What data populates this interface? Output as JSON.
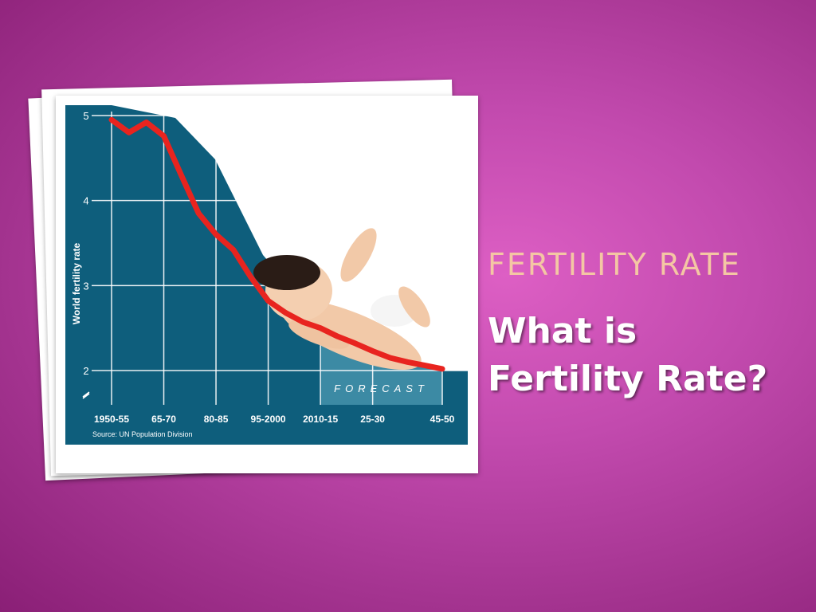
{
  "slide": {
    "subtitle": "FERTILITY RATE",
    "title_line1": "What is",
    "title_line2": "Fertility Rate?"
  },
  "chart_data": {
    "type": "line",
    "ylabel": "World fertility rate",
    "source": "Source: UN Population Division",
    "forecast_label": "FORECAST",
    "categories": [
      "1950-55",
      "65-70",
      "80-85",
      "95-2000",
      "2010-15",
      "25-30",
      "45-50"
    ],
    "ylim": [
      2,
      5
    ],
    "yticks": [
      5,
      4,
      3,
      2
    ],
    "grid": true,
    "series": [
      {
        "x": [
          1952,
          1957,
          1962,
          1967,
          1972,
          1977,
          1982,
          1987,
          1992,
          1997,
          2002,
          2007,
          2012,
          2017,
          2022,
          2027,
          2032,
          2037,
          2042,
          2047
        ],
        "values": [
          4.95,
          4.8,
          4.92,
          4.76,
          4.3,
          3.85,
          3.6,
          3.42,
          3.1,
          2.82,
          2.68,
          2.57,
          2.5,
          2.4,
          2.32,
          2.23,
          2.15,
          2.1,
          2.06,
          2.02
        ]
      }
    ],
    "colors": {
      "panel": "#0e5e7c",
      "forecast_panel": "#3c8aa4",
      "line": "#e8241f",
      "grid": "#ffffff"
    }
  }
}
